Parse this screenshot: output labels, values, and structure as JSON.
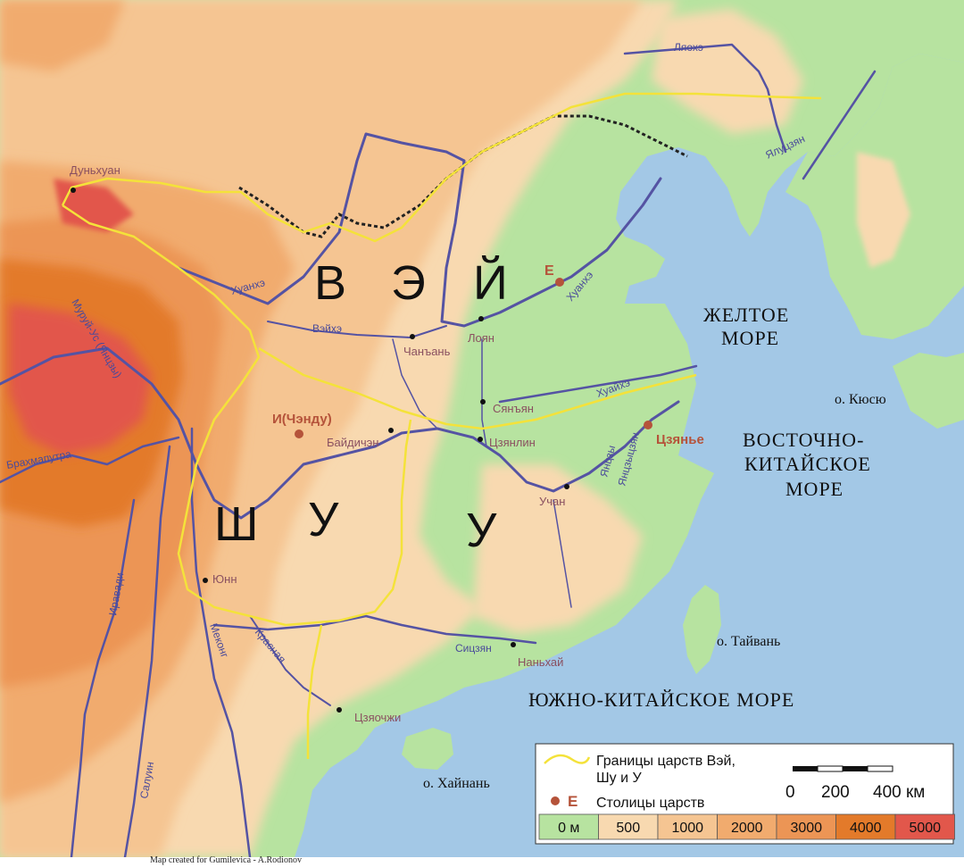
{
  "kingdoms": [
    {
      "name": "В",
      "key": "wei-v"
    },
    {
      "name": "Э",
      "key": "wei-e"
    },
    {
      "name": "Й",
      "key": "wei-y"
    },
    {
      "name": "Ш",
      "key": "shu-sh"
    },
    {
      "name": "У",
      "key": "shu-u"
    },
    {
      "name": "У",
      "key": "wu"
    }
  ],
  "capitals": [
    {
      "name": "Е"
    },
    {
      "name": "И(Чэнду)"
    },
    {
      "name": "Цзянье"
    }
  ],
  "cities": [
    {
      "name": "Дуньхуан"
    },
    {
      "name": "Лоян"
    },
    {
      "name": "Чанъань"
    },
    {
      "name": "Сянъян"
    },
    {
      "name": "Цзянлин"
    },
    {
      "name": "Байдичэн"
    },
    {
      "name": "Учан"
    },
    {
      "name": "Юнн"
    },
    {
      "name": "Наньхай"
    },
    {
      "name": "Цзяочжи"
    }
  ],
  "rivers": [
    {
      "name": "Ляохэ"
    },
    {
      "name": "Ялуцзян"
    },
    {
      "name": "Хуанхэ"
    },
    {
      "name": "Хуанхэ"
    },
    {
      "name": "Вэйхэ"
    },
    {
      "name": "Хуайхэ"
    },
    {
      "name": "Янцзы"
    },
    {
      "name": "Янцзыцзян"
    },
    {
      "name": "Сицзян"
    },
    {
      "name": "Муруй-Ус (Янцзы)"
    },
    {
      "name": "Брахмапутра"
    },
    {
      "name": "Иравади"
    },
    {
      "name": "Меконг"
    },
    {
      "name": "Красная"
    },
    {
      "name": "Салуин"
    }
  ],
  "seas": [
    {
      "line1": "ЖЕЛТОЕ",
      "line2": "МОРЕ"
    },
    {
      "line1": "ВОСТОЧНО-",
      "line2": "КИТАЙСКОЕ",
      "line3": "МОРЕ"
    },
    {
      "line1": "ЮЖНО-КИТАЙСКОЕ МОРЕ"
    }
  ],
  "islands": [
    {
      "name": "о. Кюсю"
    },
    {
      "name": "о. Тайвань"
    },
    {
      "name": "о. Хайнань"
    }
  ],
  "legend": {
    "border_label_1": "Границы царств Вэй,",
    "border_label_2": "Шу и У",
    "capital_symbol": "Е",
    "capital_label": "Столицы царств",
    "scale_0": "0",
    "scale_200": "200",
    "scale_400": "400 км",
    "elevations": [
      {
        "label": "0 м",
        "color": "#b7e3a0"
      },
      {
        "label": "500",
        "color": "#f8d9b0"
      },
      {
        "label": "1000",
        "color": "#f5c592"
      },
      {
        "label": "2000",
        "color": "#f1ab6e"
      },
      {
        "label": "3000",
        "color": "#ec9555"
      },
      {
        "label": "4000",
        "color": "#e37a2a"
      },
      {
        "label": "5000",
        "color": "#e2574b"
      }
    ]
  },
  "credit": "Map created for Gumilevica - A.Rodionov",
  "colors": {
    "sea": "#a3c8e6",
    "lowland": "#b7e3a0",
    "border": "#f4e23a",
    "great_wall": "#222222",
    "river": "#5553a3",
    "capital": "#b5533a",
    "city_label": "#8a5060"
  }
}
